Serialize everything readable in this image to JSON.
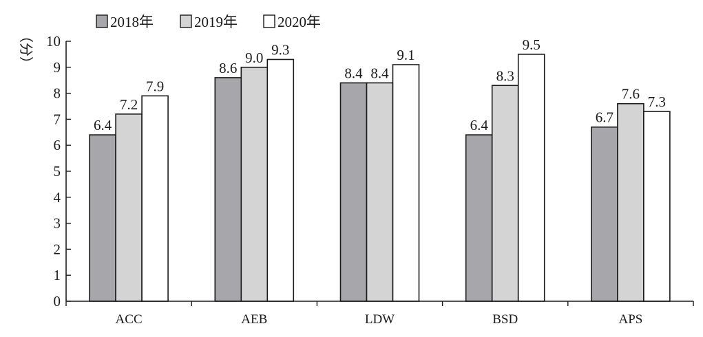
{
  "chart_data": {
    "type": "bar",
    "title": "",
    "xlabel": "",
    "ylabel": "（分）",
    "ylim": [
      0,
      10
    ],
    "yticks": [
      0,
      1,
      2,
      3,
      4,
      5,
      6,
      7,
      8,
      9,
      10
    ],
    "grid": false,
    "legend_position": "top-left",
    "categories": [
      "ACC",
      "AEB",
      "LDW",
      "BSD",
      "APS"
    ],
    "series": [
      {
        "name": "2018年",
        "color": "#a6a6ab",
        "values": [
          6.4,
          8.6,
          8.4,
          6.4,
          6.7
        ],
        "labels": [
          "6.4",
          "8.6",
          "8.4",
          "6.4",
          "6.7"
        ]
      },
      {
        "name": "2019年",
        "color": "#d4d4d4",
        "values": [
          7.2,
          9.0,
          8.4,
          8.3,
          7.6
        ],
        "labels": [
          "7.2",
          "9.0",
          "8.4",
          "8.3",
          "7.6"
        ]
      },
      {
        "name": "2020年",
        "color": "#ffffff",
        "values": [
          7.9,
          9.3,
          9.1,
          9.5,
          7.3
        ],
        "labels": [
          "7.9",
          "9.3",
          "9.1",
          "9.5",
          "7.3"
        ]
      }
    ]
  }
}
